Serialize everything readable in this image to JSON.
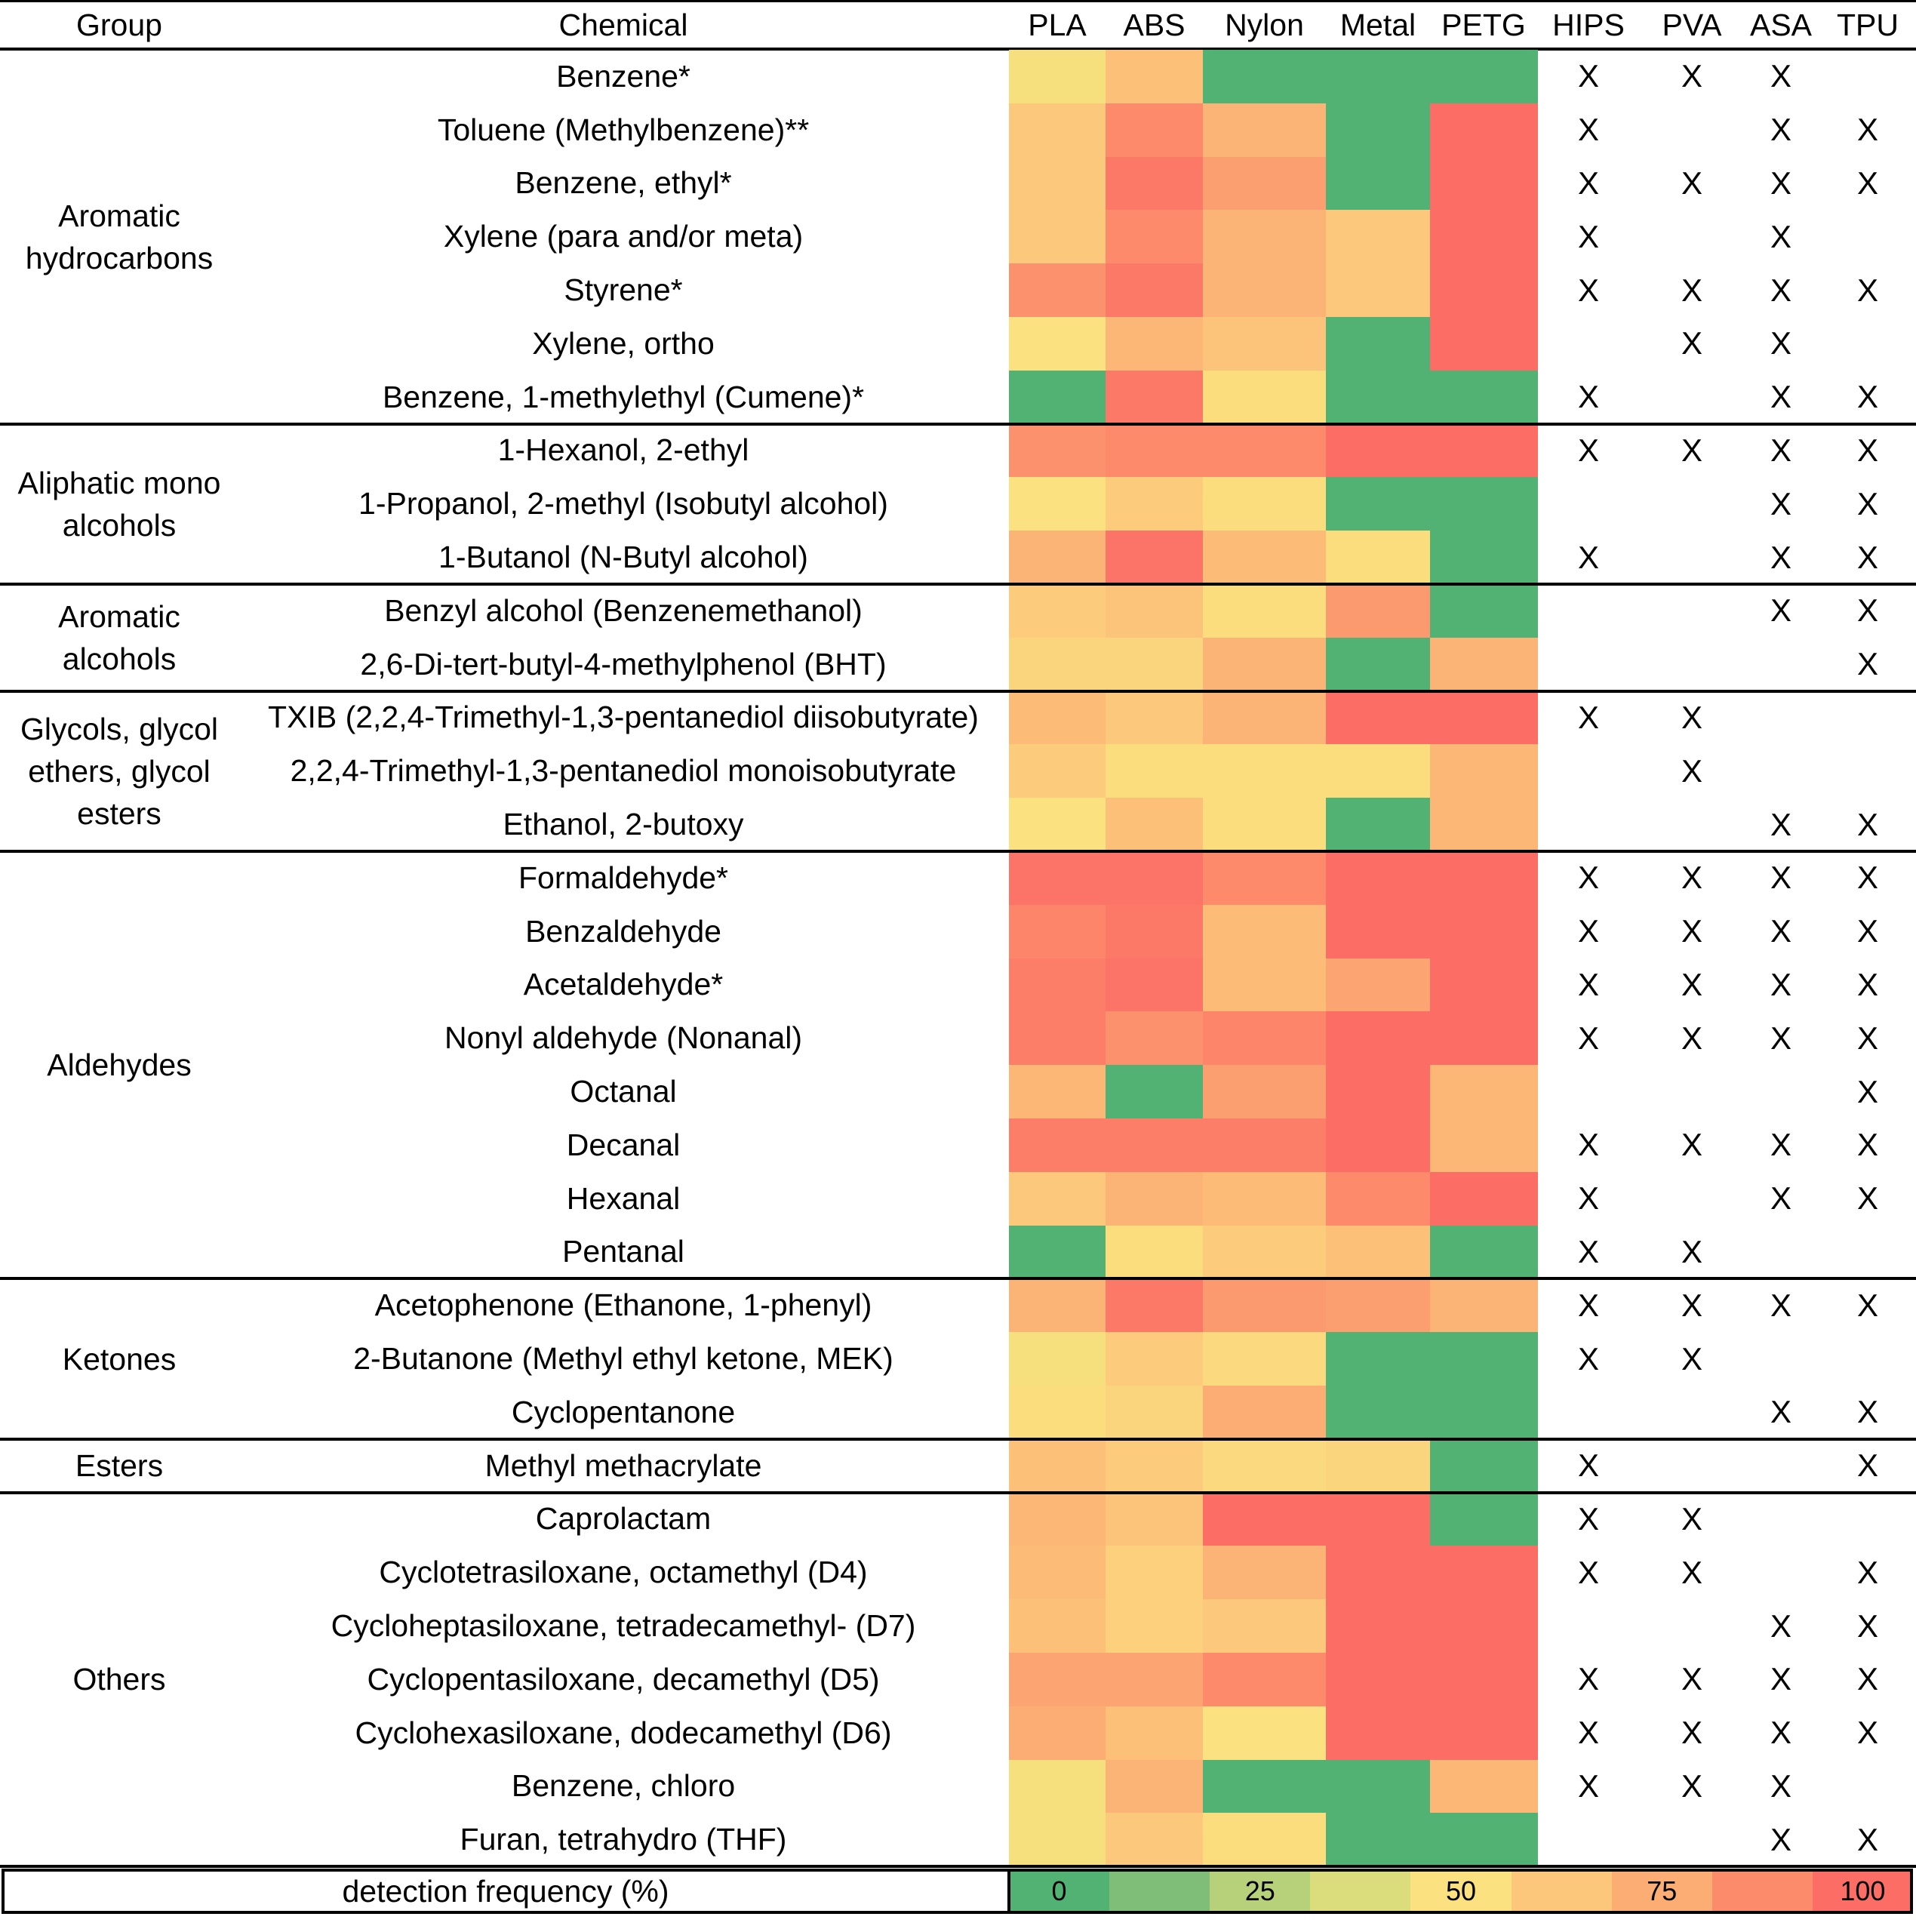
{
  "chart_data": {
    "type": "heatmap",
    "headers": {
      "group": "Group",
      "chemical": "Chemical",
      "filaments": [
        "PLA",
        "ABS",
        "Nylon",
        "Metal",
        "PETG"
      ],
      "presence": [
        "HIPS",
        "PVA",
        "ASA",
        "TPU"
      ]
    },
    "colorscale": [
      "#52b274",
      "#7fbe79",
      "#b7d17b",
      "#dbdc7b",
      "#fbe17f",
      "#fcc77b",
      "#fcad74",
      "#fc8b6b",
      "#fc6d66"
    ],
    "groups": [
      {
        "name": "Aromatic hydrocarbons",
        "label": "Aromatic\nhydrocarbons",
        "rows": 7
      },
      {
        "name": "Aliphatic mono alcohols",
        "label": "Aliphatic mono\nalcohols",
        "rows": 3
      },
      {
        "name": "Aromatic alcohols",
        "label": "Aromatic\nalcohols",
        "rows": 2
      },
      {
        "name": "Glycols, glycol ethers, glycol esters",
        "label": "Glycols, glycol\nethers, glycol\nesters",
        "rows": 3
      },
      {
        "name": "Aldehydes",
        "label": "Aldehydes",
        "rows": 8
      },
      {
        "name": "Ketones",
        "label": "Ketones",
        "rows": 3
      },
      {
        "name": "Esters",
        "label": "Esters",
        "rows": 1
      },
      {
        "name": "Others",
        "label": "Others",
        "rows": 7
      }
    ],
    "rows": [
      {
        "chemical": "Benzene*",
        "values": [
          48,
          66,
          0,
          0,
          0
        ],
        "marks": [
          "X",
          "X",
          "X",
          ""
        ]
      },
      {
        "chemical": "Toluene (Methylbenzene)**",
        "values": [
          62,
          88,
          72,
          0,
          100
        ],
        "marks": [
          "X",
          "",
          "X",
          "X"
        ]
      },
      {
        "chemical": "Benzene, ethyl*",
        "values": [
          62,
          95,
          80,
          0,
          100
        ],
        "marks": [
          "X",
          "X",
          "X",
          "X"
        ]
      },
      {
        "chemical": "Xylene (para and/or meta)",
        "values": [
          62,
          88,
          72,
          62,
          100
        ],
        "marks": [
          "X",
          "",
          "X",
          ""
        ]
      },
      {
        "chemical": "Styrene*",
        "values": [
          85,
          95,
          72,
          62,
          100
        ],
        "marks": [
          "X",
          "X",
          "X",
          "X"
        ]
      },
      {
        "chemical": "Xylene, ortho",
        "values": [
          50,
          70,
          64,
          0,
          100
        ],
        "marks": [
          "",
          "X",
          "X",
          ""
        ]
      },
      {
        "chemical": "Benzene, 1-methylethyl (Cumene)*",
        "values": [
          0,
          95,
          52,
          0,
          0
        ],
        "marks": [
          "X",
          "",
          "X",
          "X"
        ]
      },
      {
        "chemical": "1-Hexanol, 2-ethyl",
        "values": [
          85,
          88,
          88,
          100,
          100
        ],
        "marks": [
          "X",
          "X",
          "X",
          "X"
        ]
      },
      {
        "chemical": "1-Propanol, 2-methyl (Isobutyl alcohol)",
        "values": [
          50,
          60,
          52,
          0,
          0
        ],
        "marks": [
          "",
          "",
          "X",
          "X"
        ]
      },
      {
        "chemical": "1-Butanol  (N-Butyl alcohol)",
        "values": [
          72,
          97,
          68,
          52,
          0
        ],
        "marks": [
          "X",
          "",
          "X",
          "X"
        ]
      },
      {
        "chemical": "Benzyl alcohol (Benzenemethanol)",
        "values": [
          60,
          64,
          52,
          82,
          0
        ],
        "marks": [
          "",
          "",
          "X",
          "X"
        ]
      },
      {
        "chemical": "2,6-Di-tert-butyl-4-methylphenol (BHT)",
        "values": [
          56,
          56,
          72,
          0,
          72
        ],
        "marks": [
          "",
          "",
          "",
          "X"
        ]
      },
      {
        "chemical": "TXIB (2,2,4-Trimethyl-1,3-pentanediol diisobutyrate)",
        "values": [
          68,
          62,
          72,
          100,
          100
        ],
        "marks": [
          "X",
          "X",
          "",
          ""
        ]
      },
      {
        "chemical": "2,2,4-Trimethyl-1,3-pentanediol monoisobutyrate",
        "values": [
          60,
          52,
          52,
          52,
          70
        ],
        "marks": [
          "",
          "X",
          "",
          ""
        ]
      },
      {
        "chemical": "Ethanol, 2-butoxy",
        "values": [
          50,
          66,
          52,
          0,
          70
        ],
        "marks": [
          "",
          "",
          "X",
          "X"
        ]
      },
      {
        "chemical": "Formaldehyde*",
        "values": [
          97,
          97,
          88,
          100,
          100
        ],
        "marks": [
          "X",
          "X",
          "X",
          "X"
        ]
      },
      {
        "chemical": "Benzaldehyde",
        "values": [
          90,
          95,
          68,
          100,
          100
        ],
        "marks": [
          "X",
          "X",
          "X",
          "X"
        ]
      },
      {
        "chemical": "Acetaldehyde*",
        "values": [
          93,
          97,
          68,
          78,
          100
        ],
        "marks": [
          "X",
          "X",
          "X",
          "X"
        ]
      },
      {
        "chemical": "Nonyl aldehyde (Nonanal)",
        "values": [
          93,
          85,
          90,
          100,
          100
        ],
        "marks": [
          "X",
          "X",
          "X",
          "X"
        ]
      },
      {
        "chemical": "Octanal",
        "values": [
          70,
          0,
          80,
          100,
          70
        ],
        "marks": [
          "",
          "",
          "",
          "X"
        ]
      },
      {
        "chemical": "Decanal",
        "values": [
          93,
          93,
          93,
          100,
          70
        ],
        "marks": [
          "X",
          "X",
          "X",
          "X"
        ]
      },
      {
        "chemical": "Hexanal",
        "values": [
          62,
          72,
          68,
          88,
          100
        ],
        "marks": [
          "X",
          "",
          "X",
          "X"
        ]
      },
      {
        "chemical": "Pentanal",
        "values": [
          0,
          52,
          60,
          66,
          0
        ],
        "marks": [
          "X",
          "X",
          "",
          ""
        ]
      },
      {
        "chemical": "Acetophenone (Ethanone, 1-phenyl)",
        "values": [
          72,
          95,
          82,
          80,
          72
        ],
        "marks": [
          "X",
          "X",
          "X",
          "X"
        ]
      },
      {
        "chemical": "2-Butanone (Methyl ethyl ketone, MEK)",
        "values": [
          48,
          60,
          54,
          0,
          0
        ],
        "marks": [
          "X",
          "X",
          "",
          ""
        ]
      },
      {
        "chemical": "Cyclopentanone",
        "values": [
          52,
          56,
          75,
          0,
          0
        ],
        "marks": [
          "",
          "",
          "X",
          "X"
        ]
      },
      {
        "chemical": "Methyl methacrylate",
        "values": [
          66,
          60,
          54,
          56,
          0
        ],
        "marks": [
          "X",
          "",
          "",
          "X"
        ]
      },
      {
        "chemical": "Caprolactam",
        "values": [
          70,
          64,
          100,
          100,
          0
        ],
        "marks": [
          "X",
          "X",
          "",
          ""
        ]
      },
      {
        "chemical": "Cyclotetrasiloxane, octamethyl (D4)",
        "values": [
          68,
          58,
          72,
          100,
          100
        ],
        "marks": [
          "X",
          "X",
          "",
          "X"
        ]
      },
      {
        "chemical": "Cycloheptasiloxane, tetradecamethyl- (D7)",
        "values": [
          66,
          58,
          62,
          100,
          100
        ],
        "marks": [
          "",
          "",
          "X",
          "X"
        ]
      },
      {
        "chemical": "Cyclopentasiloxane, decamethyl (D5)",
        "values": [
          78,
          78,
          88,
          100,
          100
        ],
        "marks": [
          "X",
          "X",
          "X",
          "X"
        ]
      },
      {
        "chemical": "Cyclohexasiloxane, dodecamethyl (D6)",
        "values": [
          75,
          66,
          50,
          100,
          100
        ],
        "marks": [
          "X",
          "X",
          "X",
          "X"
        ]
      },
      {
        "chemical": "Benzene, chloro",
        "values": [
          48,
          72,
          0,
          0,
          70
        ],
        "marks": [
          "X",
          "X",
          "X",
          ""
        ]
      },
      {
        "chemical": "Furan, tetrahydro (THF)",
        "values": [
          48,
          62,
          52,
          0,
          0
        ],
        "marks": [
          "",
          "",
          "X",
          "X"
        ]
      }
    ],
    "legend": {
      "title": "detection frequency (%)",
      "labels": [
        "0",
        "",
        "25",
        "",
        "50",
        "",
        "75",
        "",
        "100"
      ]
    }
  }
}
